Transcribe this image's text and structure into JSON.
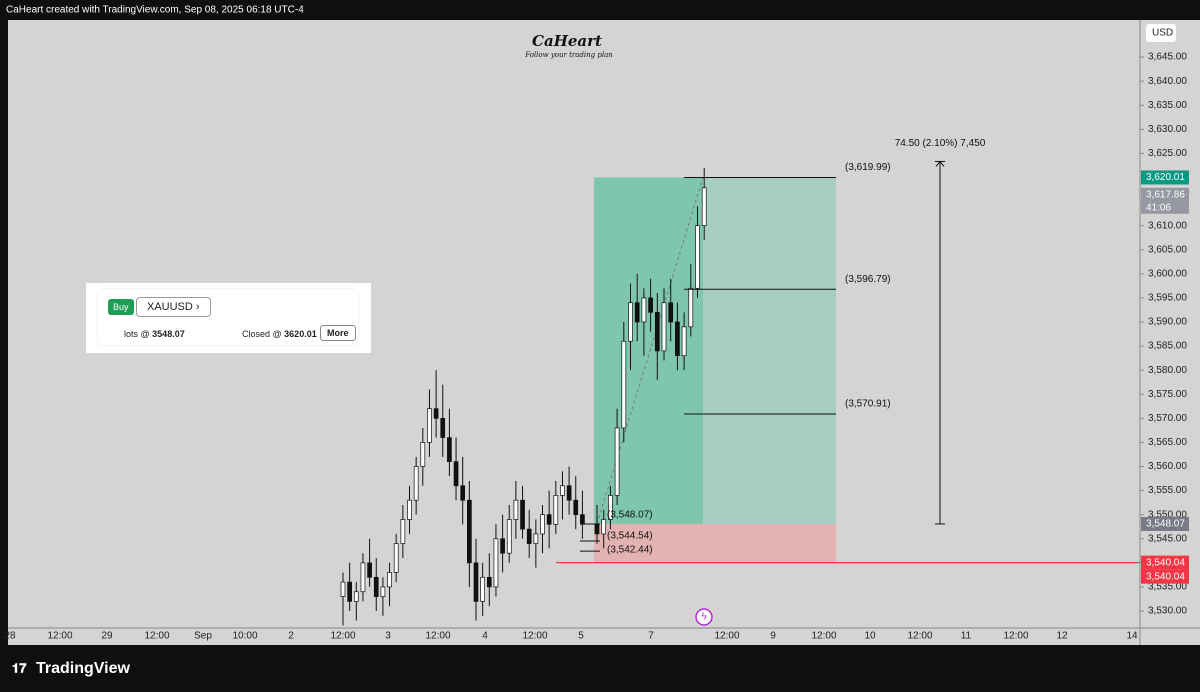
{
  "header": {
    "title": "CaHeart created with TradingView.com, Sep 08, 2025 06:18 UTC-4"
  },
  "logo": {
    "name": "CaHeart",
    "tagline": "Follow your trading plan"
  },
  "widget": {
    "side": "Buy",
    "symbol": "XAUUSD",
    "lots_text": "lots @",
    "entry": "3548.07",
    "closed_text": "Closed @",
    "exit": "3620.01",
    "button": "More"
  },
  "footer": {
    "brand": "TradingView"
  },
  "chart_data": {
    "type": "candlestick",
    "currency": "USD",
    "up_color": "#ffffff",
    "down_color": "#111111",
    "candles": {
      "open": [
        3533,
        3536,
        3532,
        3534,
        3540,
        3537,
        3533,
        3535,
        3538,
        3544,
        3549,
        3553,
        3560,
        3565,
        3572,
        3570,
        3566,
        3561,
        3556,
        3553,
        3540,
        3532,
        3537,
        3535,
        3545,
        3542,
        3549,
        3553,
        3547,
        3544,
        3546,
        3550,
        3548,
        3554,
        3556,
        3553,
        3550,
        3548,
        3546,
        3549,
        3554,
        3568,
        3586,
        3594,
        3590,
        3595,
        3592,
        3584,
        3594,
        3590,
        3583,
        3589,
        3597,
        3610
      ],
      "high": [
        3538,
        3540,
        3536,
        3542,
        3545,
        3541,
        3537,
        3540,
        3546,
        3552,
        3556,
        3562,
        3568,
        3576,
        3580,
        3577,
        3572,
        3566,
        3562,
        3557,
        3545,
        3540,
        3542,
        3548,
        3550,
        3552,
        3557,
        3556,
        3551,
        3549,
        3552,
        3555,
        3557,
        3559,
        3560,
        3558,
        3555,
        3552,
        3551,
        3556,
        3572,
        3590,
        3598,
        3600,
        3597,
        3599,
        3596,
        3597,
        3599,
        3594,
        3592,
        3602,
        3614,
        3622
      ],
      "low": [
        3527,
        3530,
        3528,
        3532,
        3535,
        3530,
        3529,
        3531,
        3536,
        3541,
        3546,
        3550,
        3556,
        3562,
        3566,
        3562,
        3558,
        3553,
        3548,
        3535,
        3528,
        3529,
        3531,
        3533,
        3538,
        3540,
        3545,
        3545,
        3541,
        3539,
        3542,
        3543,
        3546,
        3549,
        3550,
        3547,
        3545,
        3544,
        3543,
        3547,
        3552,
        3565,
        3580,
        3586,
        3583,
        3588,
        3578,
        3582,
        3586,
        3580,
        3580,
        3587,
        3595,
        3607
      ],
      "close": [
        3536,
        3532,
        3534,
        3540,
        3537,
        3533,
        3535,
        3538,
        3544,
        3549,
        3553,
        3560,
        3565,
        3572,
        3570,
        3566,
        3561,
        3556,
        3553,
        3540,
        3532,
        3537,
        3535,
        3545,
        3542,
        3549,
        3553,
        3547,
        3544,
        3546,
        3550,
        3548,
        3554,
        3556,
        3553,
        3550,
        3548,
        3546,
        3549,
        3554,
        3568,
        3586,
        3594,
        3590,
        3595,
        3592,
        3584,
        3594,
        3590,
        3583,
        3589,
        3597,
        3610,
        3617.86
      ]
    },
    "ylim": [
      3526.47,
      3652.7
    ],
    "yticks": [
      {
        "value": 3530,
        "label": "3,530.00"
      },
      {
        "value": 3535,
        "label": "3,535.00"
      },
      {
        "value": 3540,
        "label": "3,540.00"
      },
      {
        "value": 3545,
        "label": "3,545.00"
      },
      {
        "value": 3550,
        "label": "3,550.00"
      },
      {
        "value": 3555,
        "label": "3,555.00"
      },
      {
        "value": 3560,
        "label": "3,560.00"
      },
      {
        "value": 3565,
        "label": "3,565.00"
      },
      {
        "value": 3570,
        "label": "3,570.00"
      },
      {
        "value": 3575,
        "label": "3,575.00"
      },
      {
        "value": 3580,
        "label": "3,580.00"
      },
      {
        "value": 3585,
        "label": "3,585.00"
      },
      {
        "value": 3590,
        "label": "3,590.00"
      },
      {
        "value": 3595,
        "label": "3,595.00"
      },
      {
        "value": 3600,
        "label": "3,600.00"
      },
      {
        "value": 3605,
        "label": "3,605.00"
      },
      {
        "value": 3610,
        "label": "3,610.00"
      },
      {
        "value": 3615,
        "label": "3,615.00"
      },
      {
        "value": 3620,
        "label": "3,620.00"
      },
      {
        "value": 3625,
        "label": "3,625.00"
      },
      {
        "value": 3630,
        "label": "3,630.00"
      },
      {
        "value": 3635,
        "label": "3,635.00"
      },
      {
        "value": 3640,
        "label": "3,640.00"
      },
      {
        "value": 3645,
        "label": "3,645.00"
      }
    ],
    "xticks": [
      "28",
      "12:00",
      "29",
      "12:00",
      "Sep",
      "10:00",
      "2",
      "12:00",
      "3",
      "12:00",
      "4",
      "12:00",
      "5",
      "7",
      "12:00",
      "9",
      "12:00",
      "10",
      "12:00",
      "11",
      "12:00",
      "12",
      "14"
    ],
    "position": {
      "target": 3620.01,
      "entry": 3548.07,
      "stop": 3540.04
    },
    "levels": [
      {
        "value": 3619.99,
        "label": "(3,619.99)"
      },
      {
        "value": 3596.79,
        "label": "(3,596.79)"
      },
      {
        "value": 3570.91,
        "label": "(3,570.91)"
      }
    ],
    "entry_levels": [
      {
        "value": 3548.07,
        "label": "(3,548.07)"
      },
      {
        "value": 3544.54,
        "label": "(3,544.54)"
      },
      {
        "value": 3542.44,
        "label": "(3,542.44)"
      }
    ],
    "measure": {
      "label": "74.50 (2.10%) 7,450"
    },
    "price_labels": [
      {
        "value": 3620.01,
        "label": "3,620.01",
        "color": "#089981"
      },
      {
        "value": 3617.86,
        "label": "3,617.86",
        "color": "#9598a1"
      },
      {
        "value": 3548.07,
        "label": "3,548.07",
        "color": "#787b86"
      },
      {
        "value": 3540.04,
        "label": "3,540.04",
        "color": "#f23645"
      }
    ],
    "countdown": "41:06"
  }
}
